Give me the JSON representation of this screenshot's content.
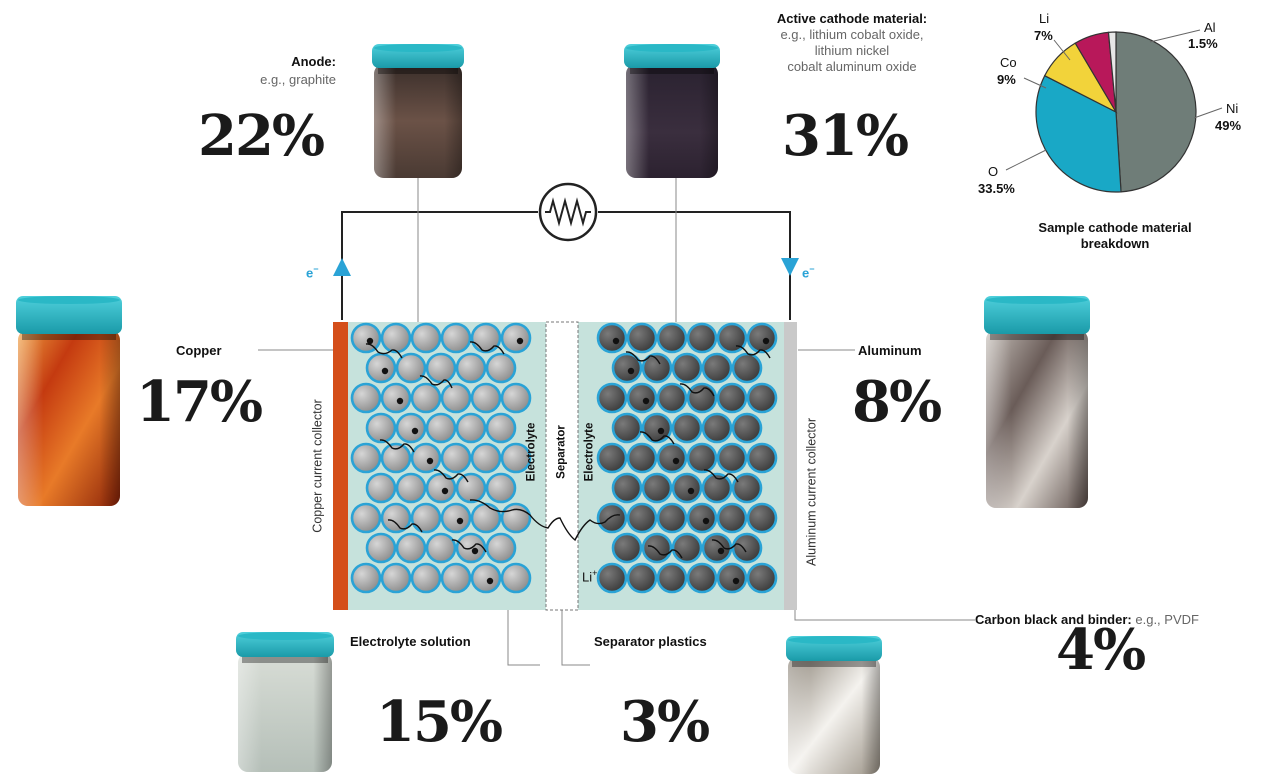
{
  "anode": {
    "title": "Anode:",
    "example": "e.g., graphite",
    "percent": "22%"
  },
  "cathode": {
    "title": "Active cathode material:",
    "example_lines": [
      "e.g., lithium cobalt oxide,",
      "lithium nickel",
      "cobalt aluminum oxide"
    ],
    "percent": "31%"
  },
  "copper": {
    "title": "Copper",
    "percent": "17%"
  },
  "aluminum": {
    "title": "Aluminum",
    "percent": "8%"
  },
  "electrolyte": {
    "title": "Electrolyte solution",
    "percent": "15%"
  },
  "separator_plastics": {
    "title": "Separator plastics",
    "percent": "3%"
  },
  "carbon": {
    "title": "Carbon black and binder:",
    "example": "e.g., PVDF",
    "percent": "4%"
  },
  "cell": {
    "copper_collector_label": "Copper current collector",
    "aluminum_collector_label": "Aluminum current collector",
    "electrolyte_left_label": "Electrolyte",
    "separator_label": "Separator",
    "electrolyte_right_label": "Electrolyte",
    "li_ion_label": "Li",
    "li_ion_charge": "+",
    "electron_left": "e",
    "electron_right": "e",
    "electron_charge": "−"
  },
  "pie": {
    "caption_lines": [
      "Sample cathode material",
      "breakdown"
    ],
    "slices": [
      {
        "name": "Ni",
        "value": 49,
        "label": "49%",
        "color": "#6f7d78"
      },
      {
        "name": "O",
        "value": 33.5,
        "label": "33.5%",
        "color": "#19a8c6"
      },
      {
        "name": "Co",
        "value": 9,
        "label": "9%",
        "color": "#f2d33a"
      },
      {
        "name": "Li",
        "value": 7,
        "label": "7%",
        "color": "#b8185a"
      },
      {
        "name": "Al",
        "value": 1.5,
        "label": "1.5%",
        "color": "#e6e6e6"
      }
    ]
  },
  "colors": {
    "electrolyte_fill": "#c6e2dc",
    "copper_bar": "#d44e1a",
    "aluminum_bar": "#c9c9c9",
    "jar_lid": "#2ab8c6",
    "particle_outline": "#2aa3d6",
    "anode_particle": "#a9a9a9",
    "cathode_particle": "#5b5b5b"
  }
}
